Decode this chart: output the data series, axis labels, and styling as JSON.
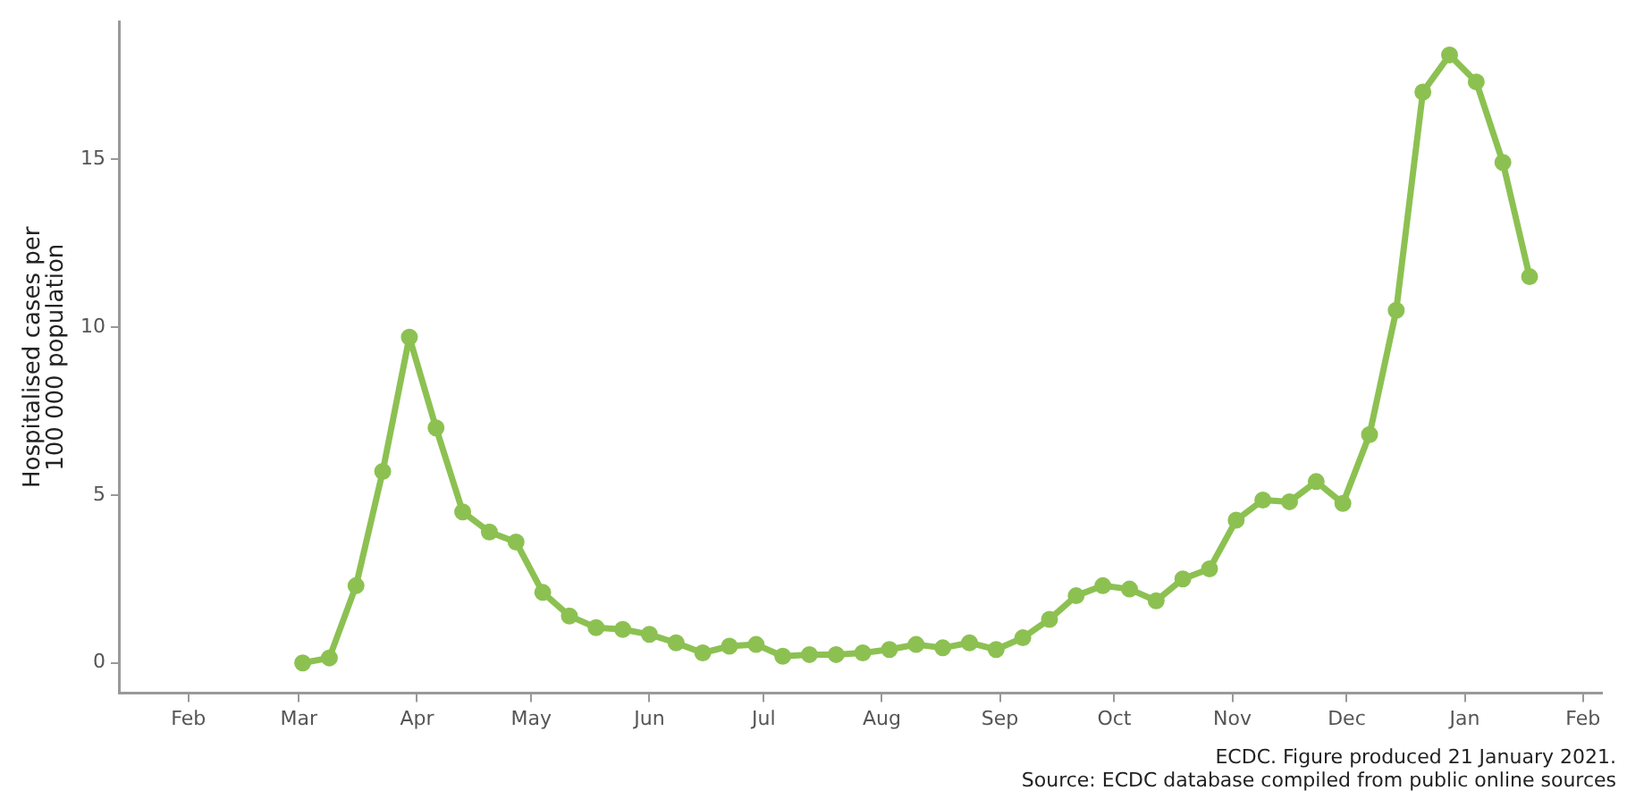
{
  "chart_data": {
    "type": "line",
    "ylabel": "Hospitalised cases per\n100 000 population",
    "x": [
      "2020-03-02",
      "2020-03-09",
      "2020-03-16",
      "2020-03-23",
      "2020-03-30",
      "2020-04-06",
      "2020-04-13",
      "2020-04-20",
      "2020-04-27",
      "2020-05-04",
      "2020-05-11",
      "2020-05-18",
      "2020-05-25",
      "2020-06-01",
      "2020-06-08",
      "2020-06-15",
      "2020-06-22",
      "2020-06-29",
      "2020-07-06",
      "2020-07-13",
      "2020-07-20",
      "2020-07-27",
      "2020-08-03",
      "2020-08-10",
      "2020-08-17",
      "2020-08-24",
      "2020-08-31",
      "2020-09-07",
      "2020-09-14",
      "2020-09-21",
      "2020-09-28",
      "2020-10-05",
      "2020-10-12",
      "2020-10-19",
      "2020-10-26",
      "2020-11-02",
      "2020-11-09",
      "2020-11-16",
      "2020-11-23",
      "2020-11-30",
      "2020-12-07",
      "2020-12-14",
      "2020-12-21",
      "2020-12-28",
      "2021-01-04",
      "2021-01-11",
      "2021-01-18"
    ],
    "series": [
      {
        "color": "#8cc152",
        "values": [
          0,
          0.15,
          2.3,
          5.7,
          9.7,
          7.0,
          4.5,
          3.9,
          3.6,
          2.1,
          1.4,
          1.05,
          1.0,
          0.85,
          0.6,
          0.3,
          0.5,
          0.55,
          0.2,
          0.25,
          0.25,
          0.3,
          0.4,
          0.55,
          0.45,
          0.6,
          0.4,
          0.75,
          1.3,
          2.0,
          2.3,
          2.2,
          1.85,
          2.5,
          2.8,
          4.25,
          4.85,
          4.8,
          5.4,
          4.75,
          6.8,
          10.5,
          17.0,
          18.1,
          17.3,
          14.9,
          11.5
        ]
      }
    ],
    "xlim": [
      "2020-01-14",
      "2021-02-06"
    ],
    "xticks": [
      {
        "value": "2020-02-01",
        "label": "Feb"
      },
      {
        "value": "2020-03-01",
        "label": "Mar"
      },
      {
        "value": "2020-04-01",
        "label": "Apr"
      },
      {
        "value": "2020-05-01",
        "label": "May"
      },
      {
        "value": "2020-06-01",
        "label": "Jun"
      },
      {
        "value": "2020-07-01",
        "label": "Jul"
      },
      {
        "value": "2020-08-01",
        "label": "Aug"
      },
      {
        "value": "2020-09-01",
        "label": "Sep"
      },
      {
        "value": "2020-10-01",
        "label": "Oct"
      },
      {
        "value": "2020-11-01",
        "label": "Nov"
      },
      {
        "value": "2020-12-01",
        "label": "Dec"
      },
      {
        "value": "2021-01-01",
        "label": "Jan"
      },
      {
        "value": "2021-02-01",
        "label": "Feb"
      }
    ],
    "ylim": [
      -0.9,
      19.1
    ],
    "yticks": [
      0,
      5,
      10,
      15
    ],
    "marker": "circle",
    "line_style": "solid",
    "legend": false,
    "annotations": [
      "ECDC. Figure produced 21 January 2021.",
      "Source: ECDC database compiled from public online sources"
    ]
  }
}
